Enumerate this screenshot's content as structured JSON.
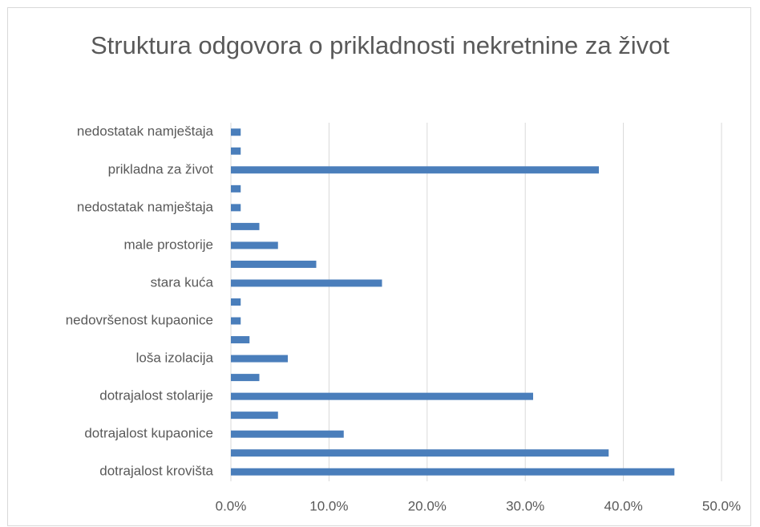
{
  "chart_data": {
    "type": "bar",
    "orientation": "horizontal",
    "title": "Struktura odgovora o prikladnosti nekretnine za život",
    "categories": [
      "dotrajalost krovišta",
      null,
      "dotrajalost kupaonice",
      null,
      "dotrajalost stolarije",
      null,
      "loša izolacija",
      null,
      "nedovršenost kupaonice",
      null,
      "stara kuća",
      null,
      "male prostorije",
      null,
      "nedostatak namještaja",
      null,
      "prikladna za život",
      null,
      "nedostatak namještaja"
    ],
    "values": [
      45.2,
      38.5,
      11.5,
      4.8,
      30.8,
      2.9,
      5.8,
      1.9,
      1.0,
      1.0,
      15.4,
      8.7,
      4.8,
      2.9,
      1.0,
      1.0,
      37.5,
      1.0,
      1.0
    ],
    "color": "#4a7ebb",
    "xlim": [
      0,
      50
    ],
    "xticks": [
      {
        "value": 0,
        "label": "0.0%"
      },
      {
        "value": 10,
        "label": "10.0%"
      },
      {
        "value": 20,
        "label": "20.0%"
      },
      {
        "value": 30,
        "label": "30.0%"
      },
      {
        "value": 40,
        "label": "40.0%"
      },
      {
        "value": 50,
        "label": "50.0%"
      }
    ],
    "grid": true
  }
}
